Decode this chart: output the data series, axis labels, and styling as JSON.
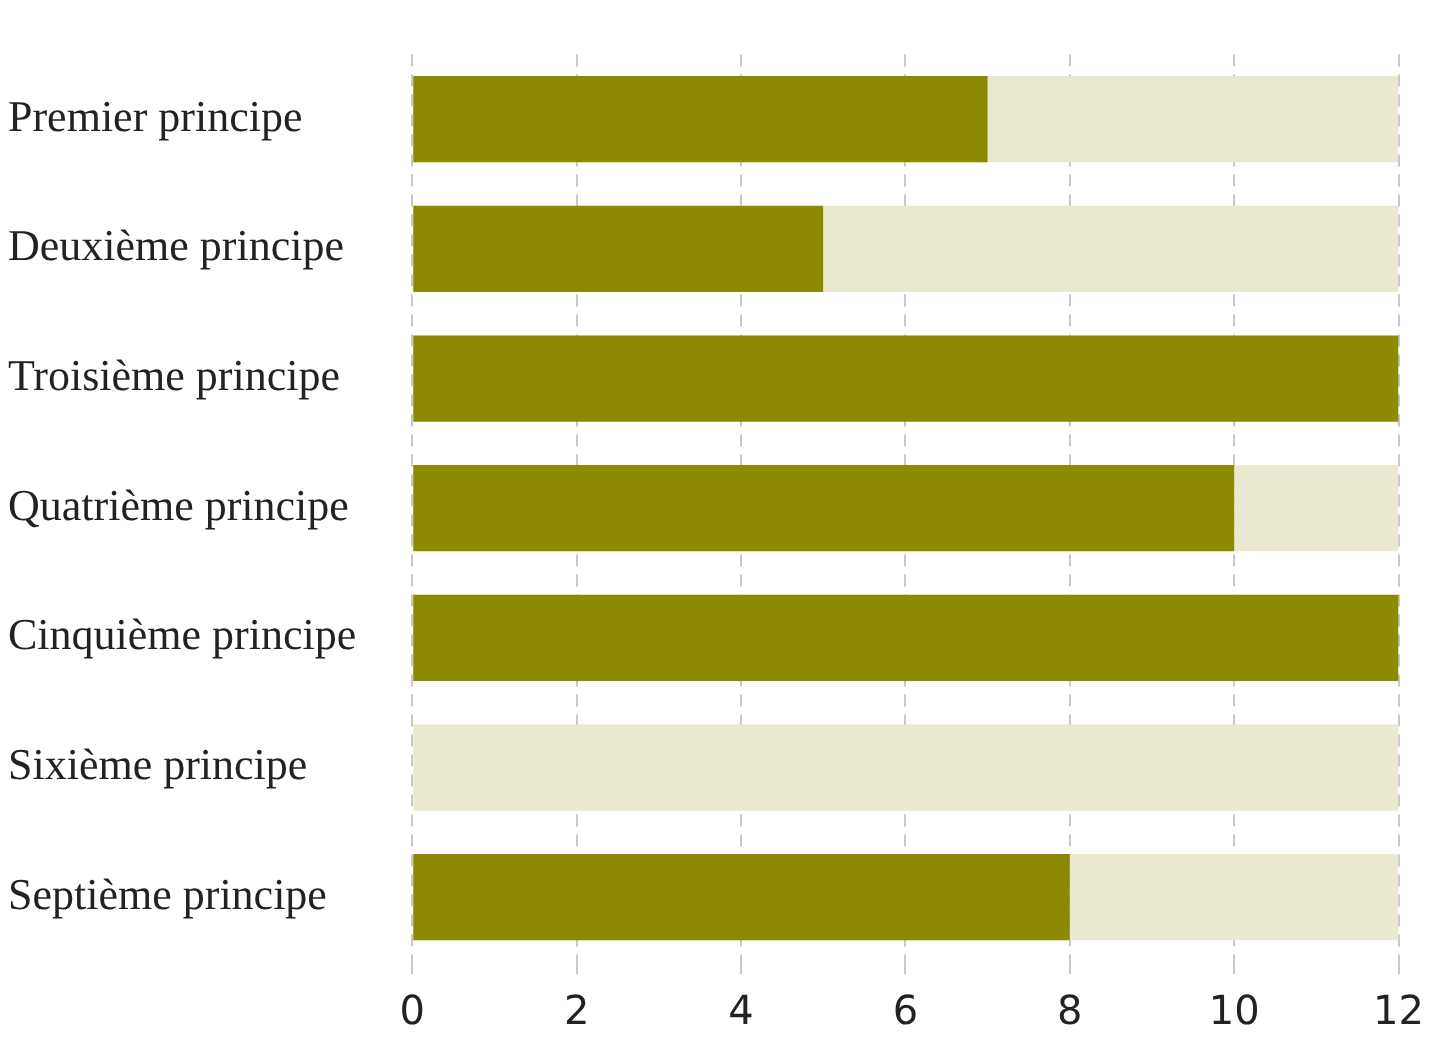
{
  "chart_data": {
    "type": "bar",
    "orientation": "horizontal",
    "stacked": true,
    "categories": [
      "Premier principe",
      "Deuxième principe",
      "Troisième principe",
      "Quatrième principe",
      "Cinquième principe",
      "Sixième principe",
      "Septième principe"
    ],
    "series": [
      {
        "color": "#8b8a00",
        "values": [
          7,
          5,
          12,
          10,
          12,
          0,
          8
        ]
      },
      {
        "color": "#ebe8d1",
        "values": [
          5,
          7,
          0,
          2,
          0,
          12,
          4
        ]
      }
    ],
    "xlim": [
      0,
      12
    ],
    "xticks": [
      0,
      2,
      4,
      6,
      8,
      10,
      12
    ],
    "grid": "x",
    "legend": false
  }
}
